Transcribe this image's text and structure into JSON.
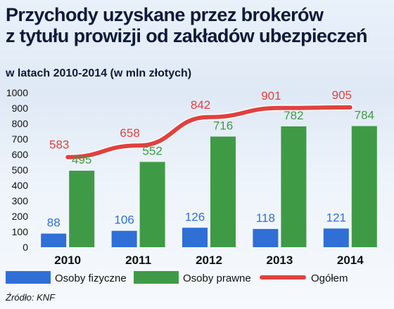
{
  "title_line1": "Przychody uzyskane przez brokerów",
  "title_line2": "z tytułu prowizji od zakładów ubezpieczeń",
  "subtitle": "w latach 2010-2014 (w mln złotych)",
  "source": "Źródło: KNF",
  "colors": {
    "fizyczne": "#2f6fd6",
    "prawne": "#3f9a45",
    "ogolem": "#e0413f",
    "axis_text": "#111111",
    "label_blue": "#2f6fd6",
    "label_green": "#3f9a45",
    "label_red": "#e0413f"
  },
  "chart_data": {
    "type": "bar",
    "categories": [
      "2010",
      "2011",
      "2012",
      "2013",
      "2014"
    ],
    "series": [
      {
        "name": "Osoby fizyczne",
        "type": "bar",
        "values": [
          88,
          106,
          126,
          118,
          121
        ]
      },
      {
        "name": "Osoby prawne",
        "type": "bar",
        "values": [
          495,
          552,
          716,
          782,
          784
        ]
      },
      {
        "name": "Ogółem",
        "type": "line",
        "values": [
          583,
          658,
          842,
          901,
          905
        ]
      }
    ],
    "ylim": [
      0,
      1000
    ],
    "yticks": [
      "0",
      "100",
      "200",
      "300",
      "400",
      "500",
      "600",
      "700",
      "800",
      "900",
      "1000"
    ],
    "grid": false,
    "legend": "bottom"
  }
}
